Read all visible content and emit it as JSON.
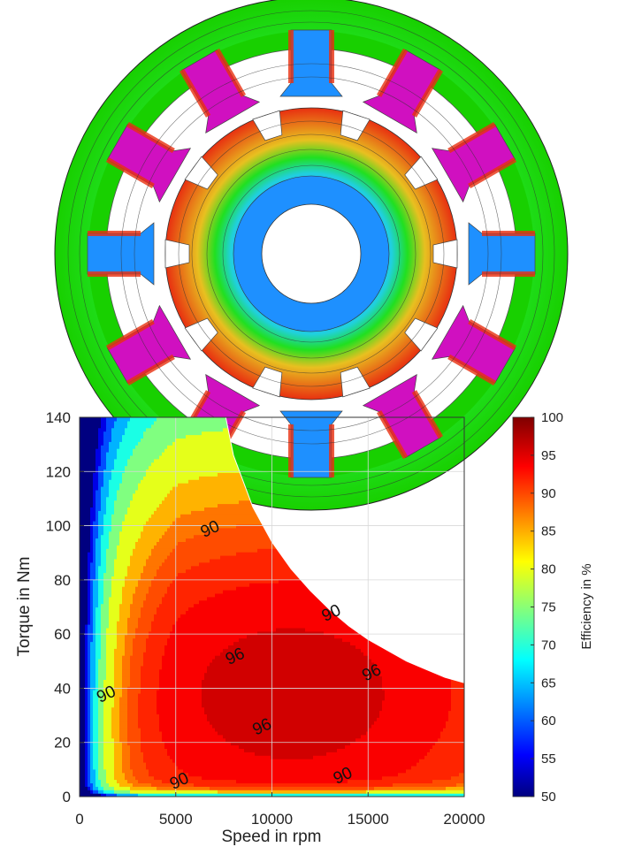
{
  "chart_data": {
    "type": "heatmap",
    "title": "",
    "xlabel": "Speed in rpm",
    "ylabel": "Torque in Nm",
    "colorbar_label": "Efficiency in %",
    "xlim": [
      0,
      20000
    ],
    "ylim": [
      0,
      140
    ],
    "clim": [
      50,
      100
    ],
    "x_ticks": [
      0,
      5000,
      10000,
      15000,
      20000
    ],
    "y_ticks": [
      0,
      20,
      40,
      60,
      80,
      100,
      120,
      140
    ],
    "colorbar_ticks": [
      50,
      55,
      60,
      65,
      70,
      75,
      80,
      85,
      90,
      95,
      100
    ],
    "grid": true,
    "colormap": "jet",
    "operating_limit": {
      "description": "maximum torque envelope",
      "points": [
        [
          0,
          140
        ],
        [
          7600,
          140
        ],
        [
          8000,
          126
        ],
        [
          9000,
          107
        ],
        [
          10000,
          94
        ],
        [
          11000,
          84
        ],
        [
          12000,
          76
        ],
        [
          13000,
          69
        ],
        [
          14000,
          63
        ],
        [
          15000,
          58
        ],
        [
          16000,
          54
        ],
        [
          17000,
          50
        ],
        [
          18000,
          47
        ],
        [
          19000,
          44
        ],
        [
          20000,
          42
        ]
      ]
    },
    "contour_labels": [
      {
        "text": "90",
        "x": 6900,
        "y": 97
      },
      {
        "text": "90",
        "x": 13200,
        "y": 66
      },
      {
        "text": "90",
        "x": 1500,
        "y": 36
      },
      {
        "text": "90",
        "x": 5300,
        "y": 4
      },
      {
        "text": "90",
        "x": 13800,
        "y": 6
      },
      {
        "text": "96",
        "x": 8200,
        "y": 50
      },
      {
        "text": "96",
        "x": 15300,
        "y": 44
      },
      {
        "text": "96",
        "x": 9600,
        "y": 24
      }
    ],
    "peak_efficiency_region": {
      "center": [
        11000,
        38
      ],
      "value": 97
    }
  },
  "motor_image": {
    "description_type": "flux density plot",
    "stator_slots": 12,
    "rotor_poles": 10,
    "colors": {
      "low": "#1e90ff",
      "mid": "#18e000",
      "high_warm": "#e8a020",
      "high": "#e83010",
      "saturated": "#d010c0"
    }
  }
}
